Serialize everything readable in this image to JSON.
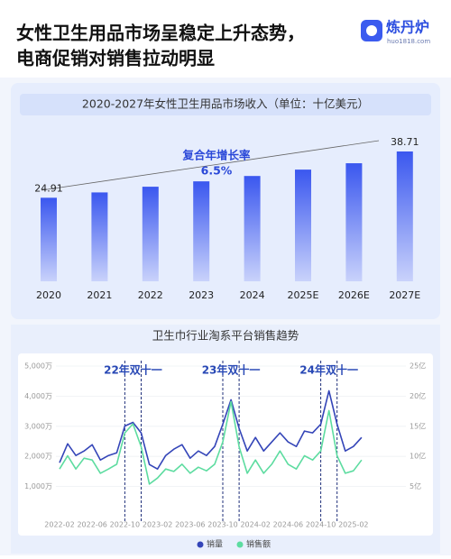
{
  "header": {
    "title_lines": [
      "女性卫生用品市场呈稳定上升态势，",
      "电商促销对销售拉动明显"
    ],
    "logo": {
      "name": "炼丹炉",
      "url": "huo1818.com"
    }
  },
  "chart_data": [
    {
      "type": "bar",
      "title": "2020-2027年女性卫生用品市场收入（单位：十亿美元）",
      "categories": [
        "2020",
        "2021",
        "2022",
        "2023",
        "2024",
        "2025E",
        "2026E",
        "2027E"
      ],
      "values": [
        24.91,
        26.5,
        28.2,
        29.8,
        31.4,
        33.3,
        35.2,
        38.71
      ],
      "color": "#3a57ef",
      "annotations": [
        {
          "text": "复合年增长率"
        },
        {
          "text": "6.5%"
        }
      ]
    },
    {
      "type": "line",
      "title": "卫生巾行业淘系平台销售趋势",
      "x": [
        "2022-02",
        "2022-03",
        "2022-04",
        "2022-05",
        "2022-06",
        "2022-07",
        "2022-08",
        "2022-09",
        "2022-10",
        "2022-11",
        "2022-12",
        "2023-01",
        "2023-02",
        "2023-03",
        "2023-04",
        "2023-05",
        "2023-06",
        "2023-07",
        "2023-08",
        "2023-09",
        "2023-10",
        "2023-11",
        "2023-12",
        "2024-01",
        "2024-02",
        "2024-03",
        "2024-04",
        "2024-05",
        "2024-06",
        "2024-07",
        "2024-08",
        "2024-09",
        "2024-10",
        "2024-11",
        "2024-12",
        "2025-01",
        "2025-02",
        "2025-03"
      ],
      "xticks": [
        "2022-02",
        "2022-06",
        "2022-10",
        "2023-02",
        "2023-06",
        "2023-10",
        "2024-02",
        "2024-06",
        "2024-10",
        "2025-02"
      ],
      "ylim": [
        0,
        5000
      ],
      "yticks": [
        {
          "value": 1000,
          "label": "1,000万"
        },
        {
          "value": 2000,
          "label": "2,000万"
        },
        {
          "value": 3000,
          "label": "3,000万"
        },
        {
          "value": 4000,
          "label": "4,000万"
        },
        {
          "value": 5000,
          "label": "5,000万"
        }
      ],
      "y2lim": [
        0,
        25
      ],
      "y2ticks": [
        {
          "value": 5,
          "label": "5亿"
        },
        {
          "value": 10,
          "label": "10亿"
        },
        {
          "value": 15,
          "label": "15亿"
        },
        {
          "value": 20,
          "label": "20亿"
        },
        {
          "value": 25,
          "label": "25亿"
        }
      ],
      "grid": true,
      "legend": "bottom",
      "series": [
        {
          "name": "销量",
          "color": "#3445b8",
          "values": [
            1790,
            2420,
            2030,
            2180,
            2390,
            1880,
            2030,
            2120,
            3010,
            3130,
            2780,
            1730,
            1580,
            2030,
            2240,
            2390,
            1940,
            2180,
            2030,
            2330,
            3070,
            3880,
            2930,
            2180,
            2630,
            2180,
            2480,
            2780,
            2480,
            2330,
            2840,
            2780,
            3070,
            4180,
            3070,
            2180,
            2330,
            2630
          ]
        },
        {
          "name": "销售额",
          "color": "#5ddca0",
          "axis": "y2",
          "values": [
            7.9,
            10.1,
            7.9,
            9.7,
            9.4,
            7.2,
            7.9,
            8.7,
            13.9,
            15.4,
            11.6,
            5.4,
            6.4,
            7.9,
            7.5,
            8.7,
            7.2,
            8.2,
            7.6,
            8.7,
            12.4,
            19.1,
            11.6,
            7.2,
            9.4,
            7.2,
            8.7,
            10.9,
            8.7,
            7.9,
            10.1,
            9.4,
            10.9,
            17.6,
            10.1,
            7.2,
            7.6,
            9.4
          ]
        }
      ],
      "annotations": [
        {
          "text": "22年双十一",
          "x_range": [
            "2022-10",
            "2022-12"
          ]
        },
        {
          "text": "23年双十一",
          "x_range": [
            "2023-10",
            "2023-12"
          ]
        },
        {
          "text": "24年双十一",
          "x_range": [
            "2024-10",
            "2024-12"
          ]
        }
      ]
    }
  ]
}
